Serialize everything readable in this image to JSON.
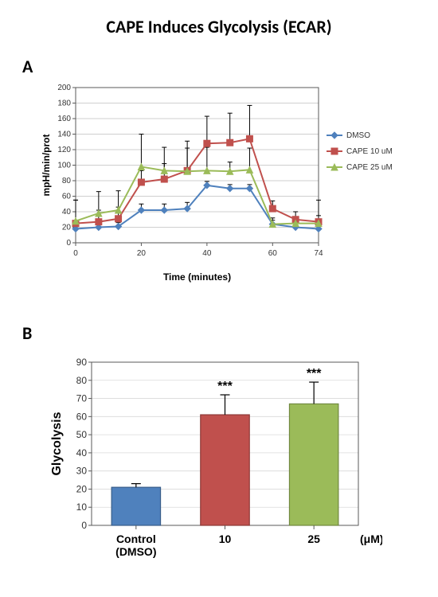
{
  "title": "CAPE Induces Glycolysis (ECAR)",
  "panelA_label": "A",
  "panelB_label": "B",
  "chartA": {
    "type": "line",
    "xlabel": "Time (minutes)",
    "ylabel": "mpH/min/prot",
    "xlim": [
      0,
      74
    ],
    "ylim": [
      0,
      200
    ],
    "ytick_step": 20,
    "xticks": [
      0,
      20,
      40,
      60,
      74
    ],
    "x_values": [
      0,
      7,
      13,
      20,
      27,
      34,
      40,
      47,
      53,
      60,
      67,
      74
    ],
    "background_color": "#ffffff",
    "grid_color": "#bfbfbf",
    "axis_color": "#595959",
    "tick_fontsize": 10,
    "label_fontsize": 12,
    "legend": {
      "items": [
        {
          "label": "DMSO",
          "color": "#4f81bd",
          "marker": "diamond"
        },
        {
          "label": "CAPE 10 uM",
          "color": "#c0504d",
          "marker": "square"
        },
        {
          "label": "CAPE 25 uM",
          "color": "#9bbb59",
          "marker": "triangle"
        }
      ],
      "fontsize": 10
    },
    "series": [
      {
        "name": "DMSO",
        "color": "#4f81bd",
        "marker": "diamond",
        "y": [
          18,
          20,
          21,
          42,
          42,
          44,
          74,
          70,
          70,
          24,
          20,
          18
        ],
        "err": [
          5,
          5,
          5,
          8,
          8,
          8,
          5,
          5,
          5,
          5,
          5,
          5
        ]
      },
      {
        "name": "CAPE 10 uM",
        "color": "#c0504d",
        "marker": "square",
        "y": [
          25,
          27,
          31,
          78,
          82,
          93,
          128,
          129,
          134,
          44,
          30,
          27
        ],
        "err": [
          30,
          15,
          15,
          15,
          20,
          38,
          35,
          38,
          43,
          10,
          10,
          28
        ]
      },
      {
        "name": "CAPE 25 uM",
        "color": "#9bbb59",
        "marker": "triangle",
        "y": [
          28,
          38,
          42,
          98,
          93,
          92,
          93,
          92,
          94,
          24,
          25,
          25
        ],
        "err": [
          27,
          28,
          25,
          42,
          30,
          30,
          30,
          12,
          28,
          8,
          8,
          10
        ]
      }
    ]
  },
  "chartB": {
    "type": "bar",
    "ylabel": "Glycolysis",
    "ylim": [
      0,
      90
    ],
    "ytick_step": 10,
    "categories": [
      "Control\n(DMSO)",
      "10",
      "25"
    ],
    "unit_label": "(μM)",
    "background_color": "#ffffff",
    "grid_color": "#d9d9d9",
    "axis_color": "#595959",
    "tick_fontsize": 12,
    "label_fontsize": 16,
    "bar_width_rel": 0.55,
    "bars": [
      {
        "value": 21,
        "err": 2,
        "color": "#4f81bd",
        "edge": "#385d8a",
        "annotation": ""
      },
      {
        "value": 61,
        "err": 11,
        "color": "#c0504d",
        "edge": "#8c3836",
        "annotation": "***"
      },
      {
        "value": 67,
        "err": 12,
        "color": "#9bbb59",
        "edge": "#71893f",
        "annotation": "***"
      }
    ],
    "annotation_fontsize": 16
  }
}
